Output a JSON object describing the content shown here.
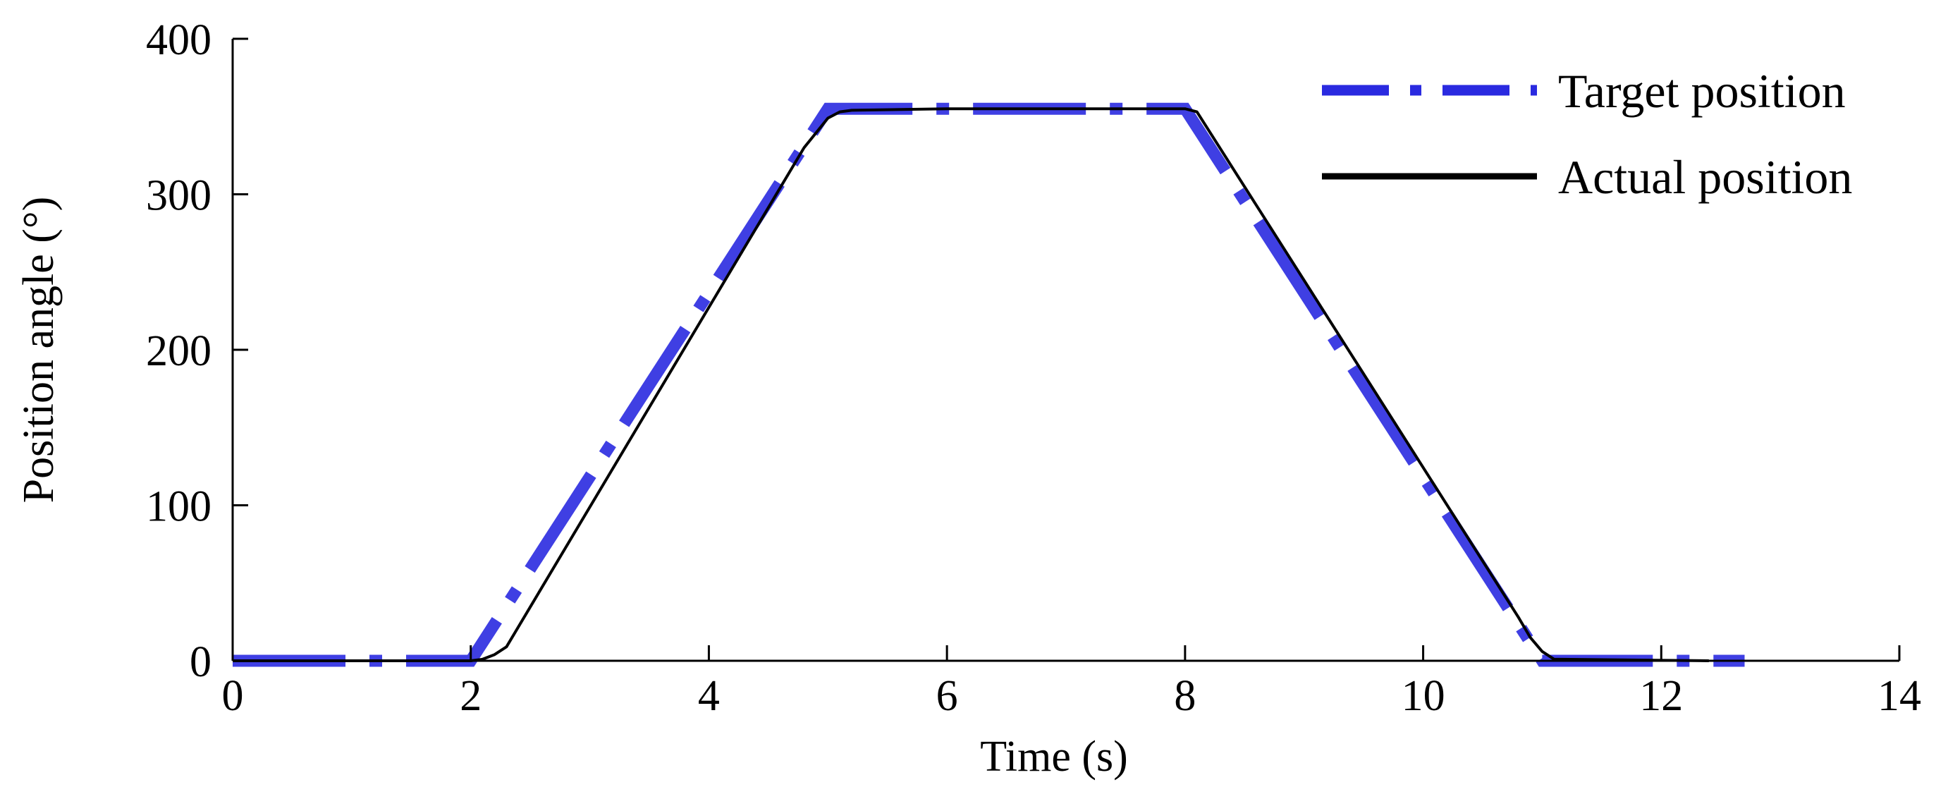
{
  "chart_data": {
    "type": "line",
    "xlabel": "Time (s)",
    "ylabel": "Position angle (°)",
    "xlim": [
      0,
      14
    ],
    "ylim": [
      0,
      400
    ],
    "x_ticks": [
      0,
      2,
      4,
      6,
      8,
      10,
      12,
      14
    ],
    "y_ticks": [
      0,
      100,
      200,
      300,
      400
    ],
    "x_tick_labels": [
      "0",
      "2",
      "4",
      "6",
      "8",
      "10",
      "12",
      "14"
    ],
    "y_tick_labels": [
      "0",
      "100",
      "200",
      "300",
      "400"
    ],
    "grid": false,
    "legend_position": "top-right",
    "series": [
      {
        "name": "Target position",
        "style": "dash-dot",
        "color": "#2a2ae0",
        "x": [
          0,
          2.0,
          5.0,
          8.0,
          11.0,
          12.7
        ],
        "y": [
          0,
          0,
          355,
          355,
          0,
          0
        ]
      },
      {
        "name": "Actual position",
        "style": "solid",
        "color": "#000000",
        "x": [
          0,
          2.0,
          2.1,
          2.2,
          2.3,
          4.8,
          5.0,
          5.1,
          5.2,
          6.0,
          7.0,
          8.0,
          8.1,
          10.8,
          10.9,
          11.0,
          11.1,
          12.4
        ],
        "y": [
          0,
          0,
          1,
          4,
          9,
          330,
          349,
          353,
          354,
          355,
          355,
          355,
          353,
          28,
          15,
          6,
          1,
          0
        ]
      }
    ]
  }
}
